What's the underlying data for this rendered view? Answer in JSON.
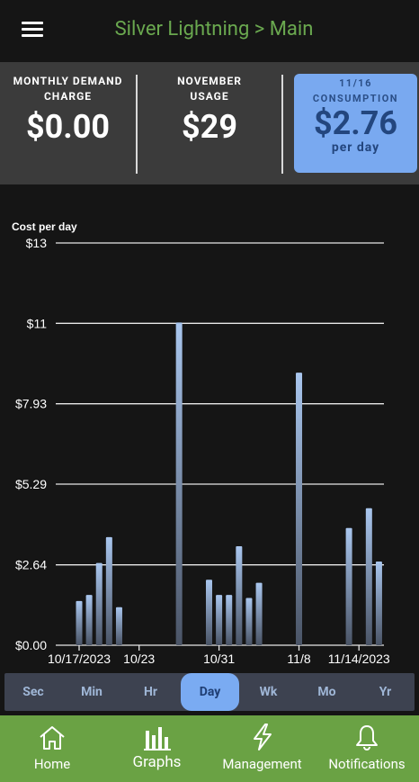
{
  "header": {
    "title": "Silver Lightning > Main"
  },
  "stats": {
    "demand": {
      "label_line1": "MONTHLY DEMAND",
      "label_line2": "CHARGE",
      "value": "$0.00"
    },
    "usage": {
      "label_line1": "NOVEMBER",
      "label_line2": "USAGE",
      "value": "$29"
    },
    "consumption": {
      "label_line1": "11/16",
      "label_line2": "CONSUMPTION",
      "value": "$2.76",
      "sub": "per day"
    }
  },
  "chart_data": {
    "type": "bar",
    "ylabel": "Cost per day",
    "ylim": [
      0,
      13.21
    ],
    "y_ticks": [
      {
        "label": "$13",
        "value": 13.21
      },
      {
        "label": "$11",
        "value": 10.57
      },
      {
        "label": "$7.93",
        "value": 7.93
      },
      {
        "label": "$5.29",
        "value": 5.29
      },
      {
        "label": "$2.64",
        "value": 2.64
      },
      {
        "label": "$0.00",
        "value": 0
      }
    ],
    "x_ticks": [
      {
        "label": "10/17/2023",
        "day": 0
      },
      {
        "label": "10/23",
        "day": 6
      },
      {
        "label": "10/31",
        "day": 14
      },
      {
        "label": "11/8",
        "day": 22
      },
      {
        "label": "11/14/2023",
        "day": 28
      }
    ],
    "days": 31,
    "values": [
      1.45,
      1.65,
      2.7,
      3.55,
      1.25,
      0,
      0,
      0,
      0,
      0,
      10.6,
      0,
      0,
      2.15,
      1.65,
      1.65,
      3.25,
      1.55,
      2.05,
      0,
      0,
      0,
      8.95,
      0,
      0,
      0,
      0,
      3.85,
      0,
      4.5,
      2.75
    ],
    "bar_color": "#a9c6ee",
    "grid": true
  },
  "ranges": {
    "items": [
      "Sec",
      "Min",
      "Hr",
      "Day",
      "Wk",
      "Mo",
      "Yr"
    ],
    "active": "Day"
  },
  "nav": {
    "home": "Home",
    "graphs": "Graphs",
    "management": "Management",
    "notifications": "Notifications"
  },
  "colors": {
    "accent_green": "#6aa244",
    "title_green": "#6aa84f",
    "active_blue": "#7aabf2"
  }
}
